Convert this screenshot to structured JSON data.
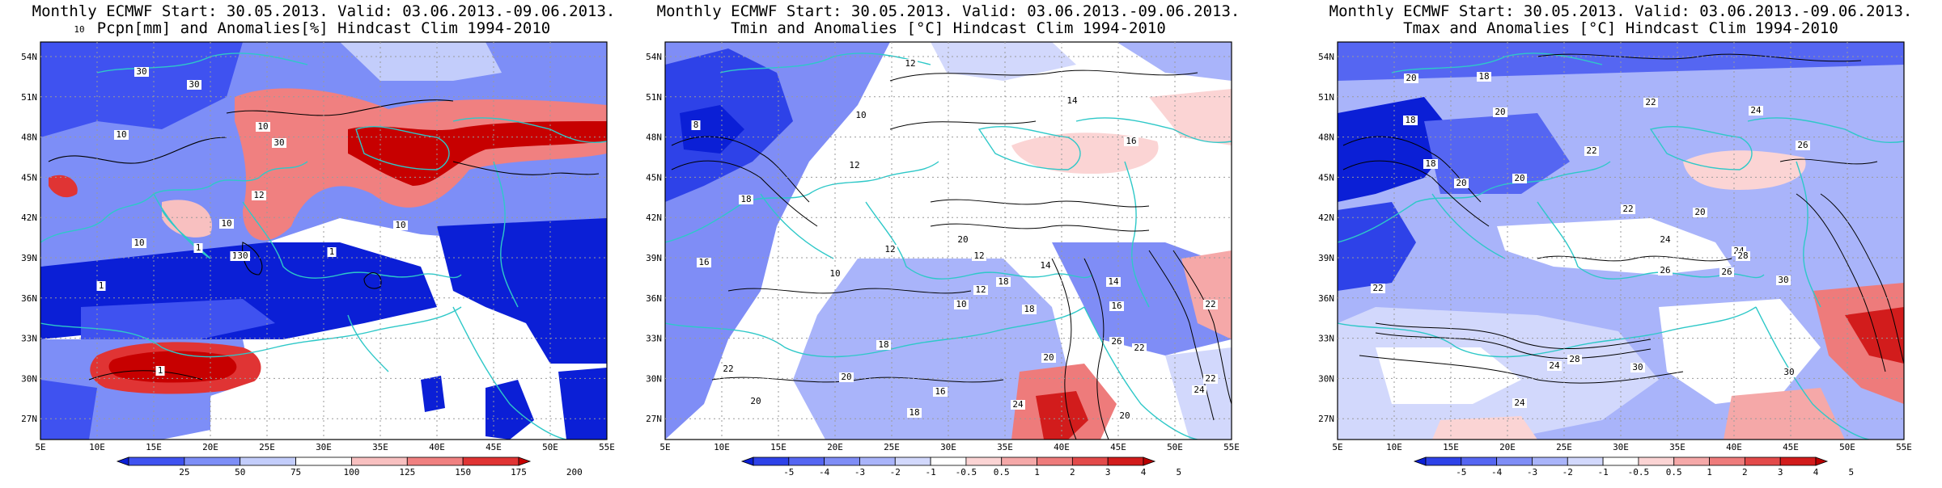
{
  "panels": [
    {
      "title_line1": "Monthly ECMWF Start: 30.05.2013. Valid: 03.06.2013.-09.06.2013.",
      "title_line2": "Pcpn[mm] and Anomalies[%] Hindcast Clim 1994-2010",
      "colorbar_labels": [
        "25",
        "50",
        "75",
        "100",
        "125",
        "150",
        "175",
        "200"
      ],
      "colorbar_colors": [
        "#0b1fd6",
        "#3f52f0",
        "#7d8ef7",
        "#c3cdfb",
        "#ffffff",
        "#f8c0c0",
        "#f08080",
        "#e03434",
        "#c70000"
      ],
      "contour_labels": [
        "10",
        "30",
        "30",
        "10",
        "30",
        "10",
        "12",
        "10",
        "1",
        "1",
        "10",
        "1",
        "1",
        "30",
        "10",
        "1"
      ]
    },
    {
      "title_line1": "Monthly ECMWF Start: 30.05.2013. Valid: 03.06.2013.-09.06.2013.",
      "title_line2": "Tmin and Anomalies [°C] Hindcast Clim 1994-2010",
      "colorbar_labels": [
        "-5",
        "-4",
        "-3",
        "-2",
        "-1",
        "-0.5",
        "0.5",
        "1",
        "2",
        "3",
        "4",
        "5"
      ],
      "colorbar_colors": [
        "#0b1fd6",
        "#2e42e8",
        "#5566f2",
        "#7f8df6",
        "#a9b4fa",
        "#d2d8fc",
        "#ffffff",
        "#fbd4d4",
        "#f5a8a8",
        "#ee7b7b",
        "#e34a4a",
        "#d21c1c",
        "#b80000"
      ],
      "contour_labels": [
        "12",
        "14",
        "16",
        "10",
        "8",
        "12",
        "18",
        "16",
        "12",
        "10",
        "12",
        "18",
        "20",
        "12",
        "14",
        "10",
        "14",
        "16",
        "18",
        "22",
        "22",
        "20",
        "24",
        "26",
        "20",
        "22",
        "18",
        "20",
        "18",
        "16",
        "22",
        "24",
        "20"
      ]
    },
    {
      "title_line1": "Monthly ECMWF Start: 30.05.2013. Valid: 03.06.2013.-09.06.2013.",
      "title_line2": "Tmax and Anomalies [°C] Hindcast Clim 1994-2010",
      "colorbar_labels": [
        "-5",
        "-4",
        "-3",
        "-2",
        "-1",
        "-0.5",
        "0.5",
        "1",
        "2",
        "3",
        "4",
        "5"
      ],
      "colorbar_colors": [
        "#0b1fd6",
        "#2e42e8",
        "#5566f2",
        "#7f8df6",
        "#a9b4fa",
        "#d2d8fc",
        "#ffffff",
        "#fbd4d4",
        "#f5a8a8",
        "#ee7b7b",
        "#e34a4a",
        "#d21c1c",
        "#b80000"
      ],
      "contour_labels": [
        "20",
        "22",
        "18",
        "20",
        "24",
        "26",
        "22",
        "18",
        "20",
        "20",
        "24",
        "22",
        "20",
        "26",
        "24",
        "28",
        "30",
        "28",
        "24",
        "30",
        "24",
        "22",
        "30",
        "18",
        "26"
      ]
    }
  ],
  "axes": {
    "lat_labels": [
      "54N",
      "51N",
      "48N",
      "45N",
      "42N",
      "39N",
      "36N",
      "33N",
      "30N",
      "27N"
    ],
    "lon_labels": [
      "5E",
      "10E",
      "15E",
      "20E",
      "25E",
      "30E",
      "35E",
      "40E",
      "45E",
      "50E",
      "55E"
    ]
  },
  "colors": {
    "coastline": "#2ec8c8",
    "contour": "#000000",
    "grid": "#9a9a9a"
  }
}
